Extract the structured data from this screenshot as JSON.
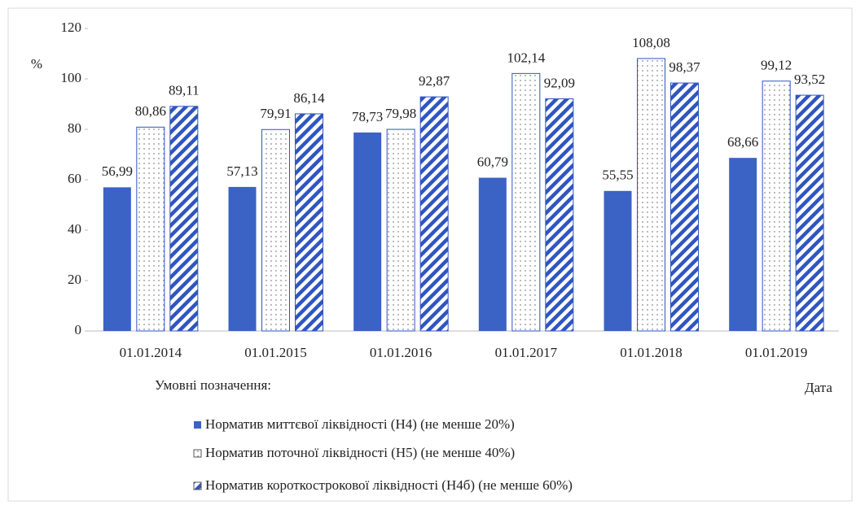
{
  "chart_data": {
    "type": "bar",
    "y_axis_label": "%",
    "x_axis_label": "Дата",
    "legend_title": "Умовні позначення:",
    "categories": [
      "01.01.2014",
      "01.01.2015",
      "01.01.2016",
      "01.01.2017",
      "01.01.2018",
      "01.01.2019"
    ],
    "series": [
      {
        "name": "Норматив миттєвої ліквідності  (Н4)  (не менше 20%)",
        "color": "#3b63c6",
        "pattern": "solid",
        "values": [
          56.99,
          57.13,
          78.73,
          60.79,
          55.55,
          68.66
        ],
        "value_labels": [
          "56,99",
          "57,13",
          "78,73",
          "60,79",
          "55,55",
          "68,66"
        ]
      },
      {
        "name": "Норматив поточної ліквідності  (Н5)  (не менше 40%)",
        "color": "#2f55c0",
        "pattern": "dotted",
        "values": [
          80.86,
          79.91,
          79.98,
          102.14,
          108.08,
          99.12
        ],
        "value_labels": [
          "80,86",
          "79,91",
          "79,98",
          "102,14",
          "108,08",
          "99,12"
        ]
      },
      {
        "name": "Норматив короткострокової ліквідності  (Н4б)  (не менше 60%)",
        "color": "#2f55c0",
        "pattern": "hatched",
        "values": [
          89.11,
          86.14,
          92.87,
          92.09,
          98.37,
          93.52
        ],
        "value_labels": [
          "89,11",
          "86,14",
          "92,87",
          "92,09",
          "98,37",
          "93,52"
        ]
      }
    ],
    "ylim": [
      0,
      120
    ],
    "yticks": [
      0,
      20,
      40,
      60,
      80,
      100,
      120
    ]
  }
}
